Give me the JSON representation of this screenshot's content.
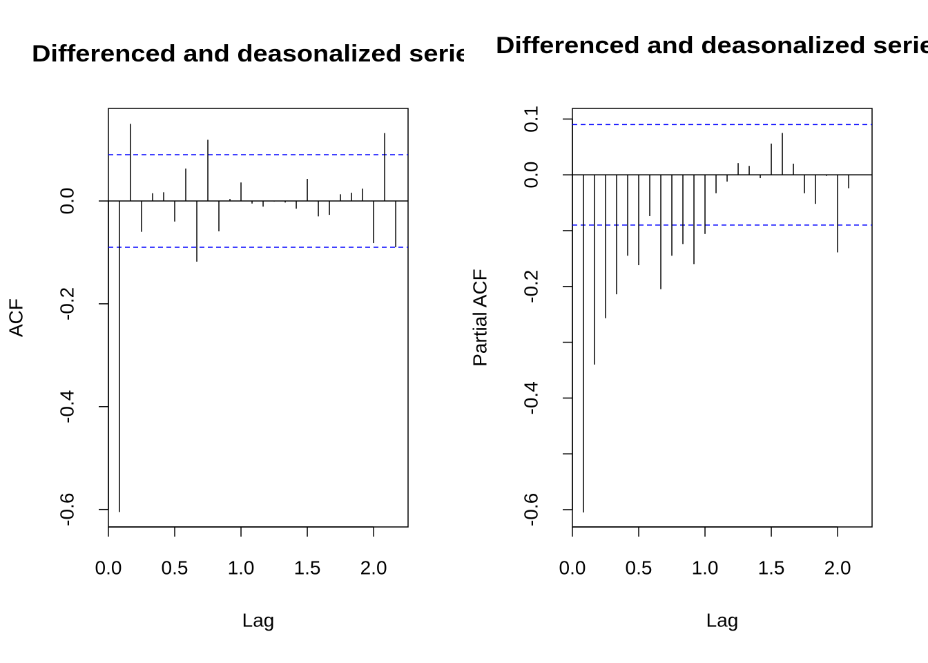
{
  "chart_data": [
    {
      "type": "acf",
      "title": "Differenced and deasonalized series",
      "xlabel": "Lag",
      "ylabel": "ACF",
      "x": [
        0.0833,
        0.1667,
        0.25,
        0.3333,
        0.4167,
        0.5,
        0.5833,
        0.6667,
        0.75,
        0.8333,
        0.9167,
        1,
        1.0833,
        1.1667,
        1.25,
        1.3333,
        1.4167,
        1.5,
        1.5833,
        1.6667,
        1.75,
        1.8333,
        1.9167,
        2,
        2.0833,
        2.1667
      ],
      "values": [
        -0.605,
        0.15,
        -0.06,
        0.015,
        0.017,
        -0.04,
        0.063,
        -0.118,
        0.119,
        -0.059,
        0.004,
        0.036,
        -0.005,
        -0.011,
        -0.001,
        -0.003,
        -0.015,
        0.043,
        -0.03,
        -0.027,
        0.013,
        0.016,
        0.024,
        -0.082,
        0.132,
        -0.09
      ],
      "color": "#000000",
      "conf_limits": [
        -0.09,
        0.09
      ],
      "conf_color": "#0000ff",
      "xlim": [
        0,
        2.26
      ],
      "ylim": [
        -0.634,
        0.18
      ],
      "xticks": [
        {
          "value": 0,
          "label": "0.0"
        },
        0.5,
        {
          "value": 1,
          "label": "1.0"
        },
        1.5,
        {
          "value": 2,
          "label": "2.0"
        }
      ],
      "yticks": [
        -0.6,
        -0.4,
        -0.2,
        {
          "value": 0,
          "label": "0.0"
        }
      ]
    },
    {
      "type": "acf",
      "title": "Differenced and deasonalized series",
      "xlabel": "Lag",
      "ylabel": "Partial ACF",
      "x": [
        0.0833,
        0.1667,
        0.25,
        0.3333,
        0.4167,
        0.5,
        0.5833,
        0.6667,
        0.75,
        0.8333,
        0.9167,
        1,
        1.0833,
        1.1667,
        1.25,
        1.3333,
        1.4167,
        1.5,
        1.5833,
        1.6667,
        1.75,
        1.8333,
        1.9167,
        2,
        2.0833
      ],
      "values": [
        -0.605,
        -0.34,
        -0.257,
        -0.214,
        -0.145,
        -0.162,
        -0.074,
        -0.205,
        -0.145,
        -0.124,
        -0.16,
        -0.106,
        -0.033,
        -0.012,
        0.021,
        0.016,
        -0.006,
        0.056,
        0.075,
        0.02,
        -0.033,
        -0.052,
        -0.002,
        -0.139,
        -0.024
      ],
      "color": "#000000",
      "conf_limits": [
        -0.09,
        0.09
      ],
      "conf_color": "#0000ff",
      "xlim": [
        0,
        2.26
      ],
      "ylim": [
        -0.631,
        0.119
      ],
      "xticks": [
        {
          "value": 0,
          "label": "0.0"
        },
        0.5,
        {
          "value": 1,
          "label": "1.0"
        },
        1.5,
        {
          "value": 2,
          "label": "2.0"
        }
      ],
      "yticks": [
        -0.6,
        {
          "value": -0.5,
          "label": null
        },
        -0.4,
        {
          "value": -0.3,
          "label": null
        },
        -0.2,
        {
          "value": -0.1,
          "label": null
        },
        {
          "value": 0,
          "label": "0.0"
        },
        0.1
      ]
    }
  ]
}
